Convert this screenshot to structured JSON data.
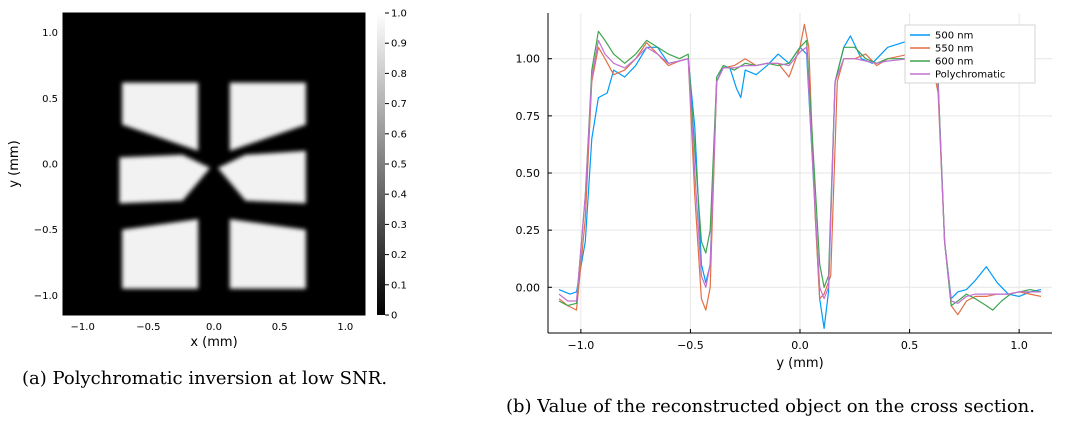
{
  "figure": {
    "caption_a": "(a) Polychromatic inversion at low SNR.",
    "caption_b": "(b) Value of the reconstructed object on the cross section."
  },
  "chart_data": [
    {
      "type": "heatmap",
      "xlabel": "x (mm)",
      "ylabel": "y (mm)",
      "xlim": [
        -1.15,
        1.15
      ],
      "ylim": [
        -1.15,
        1.15
      ],
      "xticks": [
        -1.0,
        -0.5,
        0.0,
        0.5,
        1.0
      ],
      "xtick_labels": [
        "−1.0",
        "−0.5",
        "0.0",
        "0.5",
        "1.0"
      ],
      "yticks": [
        -1.0,
        -0.5,
        0.0,
        0.5,
        1.0
      ],
      "ytick_labels": [
        "−1.0",
        "−0.5",
        "0.0",
        "0.5",
        "1.0"
      ],
      "colormap": "grayscale",
      "colorbar": {
        "range": [
          0,
          1.0
        ],
        "ticks": [
          0,
          0.1,
          0.2,
          0.3,
          0.4,
          0.5,
          0.6,
          0.7,
          0.8,
          0.9,
          1.0
        ],
        "tick_labels": [
          "0",
          "0.1",
          "0.2",
          "0.3",
          "0.4",
          "0.5",
          "0.6",
          "0.7",
          "0.8",
          "0.9",
          "1.0"
        ]
      },
      "background_value": 0.0,
      "object_value": 0.95,
      "object_regions": [
        [
          [
            -0.7,
            0.62
          ],
          [
            -0.12,
            0.62
          ],
          [
            -0.12,
            0.1
          ],
          [
            -0.7,
            0.3
          ]
        ],
        [
          [
            0.12,
            0.62
          ],
          [
            0.7,
            0.62
          ],
          [
            0.7,
            0.3
          ],
          [
            0.12,
            0.1
          ]
        ],
        [
          [
            -0.72,
            0.05
          ],
          [
            -0.24,
            0.07
          ],
          [
            -0.03,
            -0.03
          ],
          [
            -0.24,
            -0.28
          ],
          [
            -0.72,
            -0.3
          ]
        ],
        [
          [
            0.03,
            -0.03
          ],
          [
            0.24,
            0.07
          ],
          [
            0.7,
            0.1
          ],
          [
            0.7,
            -0.3
          ],
          [
            0.24,
            -0.28
          ]
        ],
        [
          [
            -0.7,
            -0.5
          ],
          [
            -0.12,
            -0.42
          ],
          [
            -0.12,
            -0.95
          ],
          [
            -0.7,
            -0.95
          ]
        ],
        [
          [
            0.12,
            -0.42
          ],
          [
            0.7,
            -0.5
          ],
          [
            0.7,
            -0.95
          ],
          [
            0.12,
            -0.95
          ]
        ]
      ]
    },
    {
      "type": "line",
      "xlabel": "y (mm)",
      "ylabel": "",
      "xlim": [
        -1.15,
        1.15
      ],
      "ylim": [
        -0.2,
        1.2
      ],
      "xticks": [
        -1.0,
        -0.5,
        0.0,
        0.5,
        1.0
      ],
      "xtick_labels": [
        "−1.0",
        "−0.5",
        "0.0",
        "0.5",
        "1.0"
      ],
      "yticks": [
        0.0,
        0.25,
        0.5,
        0.75,
        1.0
      ],
      "ytick_labels": [
        "0.00",
        "0.25",
        "0.50",
        "0.75",
        "1.00"
      ],
      "grid": true,
      "legend_position": "top-right",
      "series": [
        {
          "name": "500 nm",
          "color": "#009AFA",
          "points": [
            [
              -1.1,
              -0.01
            ],
            [
              -1.05,
              -0.03
            ],
            [
              -1.02,
              -0.02
            ],
            [
              -0.98,
              0.2
            ],
            [
              -0.95,
              0.65
            ],
            [
              -0.92,
              0.83
            ],
            [
              -0.88,
              0.85
            ],
            [
              -0.85,
              0.95
            ],
            [
              -0.8,
              0.92
            ],
            [
              -0.75,
              0.97
            ],
            [
              -0.7,
              1.05
            ],
            [
              -0.65,
              1.05
            ],
            [
              -0.6,
              0.98
            ],
            [
              -0.55,
              0.99
            ],
            [
              -0.51,
              1.0
            ],
            [
              -0.48,
              0.7
            ],
            [
              -0.45,
              0.1
            ],
            [
              -0.43,
              0.02
            ],
            [
              -0.41,
              0.1
            ],
            [
              -0.38,
              0.9
            ],
            [
              -0.35,
              0.97
            ],
            [
              -0.32,
              0.96
            ],
            [
              -0.29,
              0.87
            ],
            [
              -0.27,
              0.83
            ],
            [
              -0.25,
              0.95
            ],
            [
              -0.2,
              0.93
            ],
            [
              -0.15,
              0.97
            ],
            [
              -0.1,
              1.02
            ],
            [
              -0.05,
              0.98
            ],
            [
              0.0,
              1.05
            ],
            [
              0.03,
              1.02
            ],
            [
              0.06,
              0.5
            ],
            [
              0.09,
              -0.05
            ],
            [
              0.11,
              -0.18
            ],
            [
              0.13,
              -0.02
            ],
            [
              0.16,
              0.9
            ],
            [
              0.2,
              1.05
            ],
            [
              0.23,
              1.1
            ],
            [
              0.28,
              1.0
            ],
            [
              0.33,
              0.98
            ],
            [
              0.4,
              1.05
            ],
            [
              0.5,
              1.08
            ],
            [
              0.55,
              1.06
            ],
            [
              0.6,
              1.05
            ],
            [
              0.63,
              0.9
            ],
            [
              0.66,
              0.2
            ],
            [
              0.69,
              -0.05
            ],
            [
              0.72,
              -0.02
            ],
            [
              0.76,
              -0.01
            ],
            [
              0.8,
              0.03
            ],
            [
              0.85,
              0.09
            ],
            [
              0.9,
              0.02
            ],
            [
              0.95,
              -0.03
            ],
            [
              1.0,
              -0.04
            ],
            [
              1.05,
              -0.02
            ],
            [
              1.1,
              -0.01
            ]
          ]
        },
        {
          "name": "550 nm",
          "color": "#E26F46",
          "points": [
            [
              -1.1,
              -0.05
            ],
            [
              -1.06,
              -0.08
            ],
            [
              -1.02,
              -0.1
            ],
            [
              -0.98,
              0.3
            ],
            [
              -0.95,
              0.9
            ],
            [
              -0.92,
              1.05
            ],
            [
              -0.89,
              1.0
            ],
            [
              -0.85,
              0.93
            ],
            [
              -0.8,
              0.95
            ],
            [
              -0.75,
              1.0
            ],
            [
              -0.7,
              1.07
            ],
            [
              -0.65,
              1.02
            ],
            [
              -0.6,
              0.97
            ],
            [
              -0.55,
              0.99
            ],
            [
              -0.51,
              1.0
            ],
            [
              -0.48,
              0.4
            ],
            [
              -0.45,
              -0.05
            ],
            [
              -0.43,
              -0.1
            ],
            [
              -0.41,
              0.0
            ],
            [
              -0.38,
              0.9
            ],
            [
              -0.35,
              0.96
            ],
            [
              -0.3,
              0.97
            ],
            [
              -0.25,
              1.0
            ],
            [
              -0.2,
              0.97
            ],
            [
              -0.15,
              0.98
            ],
            [
              -0.1,
              0.98
            ],
            [
              -0.05,
              0.92
            ],
            [
              0.0,
              1.05
            ],
            [
              0.02,
              1.15
            ],
            [
              0.04,
              1.05
            ],
            [
              0.07,
              0.3
            ],
            [
              0.09,
              -0.05
            ],
            [
              0.11,
              -0.03
            ],
            [
              0.14,
              0.05
            ],
            [
              0.17,
              0.9
            ],
            [
              0.2,
              1.0
            ],
            [
              0.25,
              1.0
            ],
            [
              0.3,
              1.02
            ],
            [
              0.35,
              0.97
            ],
            [
              0.4,
              1.0
            ],
            [
              0.5,
              1.02
            ],
            [
              0.55,
              1.0
            ],
            [
              0.6,
              1.0
            ],
            [
              0.63,
              0.85
            ],
            [
              0.66,
              0.2
            ],
            [
              0.69,
              -0.08
            ],
            [
              0.72,
              -0.12
            ],
            [
              0.76,
              -0.06
            ],
            [
              0.8,
              -0.04
            ],
            [
              0.85,
              -0.04
            ],
            [
              0.9,
              -0.03
            ],
            [
              0.95,
              -0.03
            ],
            [
              1.0,
              -0.02
            ],
            [
              1.05,
              -0.03
            ],
            [
              1.1,
              -0.04
            ]
          ]
        },
        {
          "name": "600 nm",
          "color": "#3EA44E",
          "points": [
            [
              -1.1,
              -0.06
            ],
            [
              -1.06,
              -0.08
            ],
            [
              -1.02,
              -0.07
            ],
            [
              -0.98,
              0.4
            ],
            [
              -0.95,
              0.95
            ],
            [
              -0.92,
              1.12
            ],
            [
              -0.89,
              1.08
            ],
            [
              -0.85,
              1.02
            ],
            [
              -0.8,
              0.98
            ],
            [
              -0.75,
              1.02
            ],
            [
              -0.7,
              1.08
            ],
            [
              -0.65,
              1.05
            ],
            [
              -0.6,
              1.02
            ],
            [
              -0.55,
              1.0
            ],
            [
              -0.51,
              1.02
            ],
            [
              -0.48,
              0.6
            ],
            [
              -0.45,
              0.2
            ],
            [
              -0.43,
              0.15
            ],
            [
              -0.41,
              0.25
            ],
            [
              -0.38,
              0.92
            ],
            [
              -0.35,
              0.97
            ],
            [
              -0.3,
              0.95
            ],
            [
              -0.25,
              0.98
            ],
            [
              -0.2,
              0.97
            ],
            [
              -0.15,
              0.98
            ],
            [
              -0.1,
              0.97
            ],
            [
              -0.05,
              0.98
            ],
            [
              0.0,
              1.05
            ],
            [
              0.03,
              1.08
            ],
            [
              0.06,
              0.6
            ],
            [
              0.09,
              0.1
            ],
            [
              0.11,
              0.0
            ],
            [
              0.13,
              0.05
            ],
            [
              0.16,
              0.9
            ],
            [
              0.2,
              1.05
            ],
            [
              0.25,
              1.05
            ],
            [
              0.3,
              1.0
            ],
            [
              0.35,
              0.98
            ],
            [
              0.4,
              1.0
            ],
            [
              0.5,
              1.0
            ],
            [
              0.55,
              1.0
            ],
            [
              0.6,
              1.02
            ],
            [
              0.63,
              0.9
            ],
            [
              0.66,
              0.2
            ],
            [
              0.69,
              -0.08
            ],
            [
              0.72,
              -0.06
            ],
            [
              0.76,
              -0.03
            ],
            [
              0.8,
              -0.05
            ],
            [
              0.85,
              -0.08
            ],
            [
              0.88,
              -0.1
            ],
            [
              0.92,
              -0.06
            ],
            [
              0.96,
              -0.03
            ],
            [
              1.0,
              -0.02
            ],
            [
              1.05,
              -0.01
            ],
            [
              1.1,
              -0.02
            ]
          ]
        },
        {
          "name": "Polychromatic",
          "color": "#C271D2",
          "points": [
            [
              -1.1,
              -0.03
            ],
            [
              -1.06,
              -0.06
            ],
            [
              -1.02,
              -0.06
            ],
            [
              -0.98,
              0.4
            ],
            [
              -0.95,
              0.92
            ],
            [
              -0.92,
              1.08
            ],
            [
              -0.89,
              1.02
            ],
            [
              -0.85,
              0.98
            ],
            [
              -0.8,
              0.96
            ],
            [
              -0.75,
              1.0
            ],
            [
              -0.7,
              1.05
            ],
            [
              -0.65,
              1.02
            ],
            [
              -0.6,
              0.98
            ],
            [
              -0.55,
              0.99
            ],
            [
              -0.51,
              1.0
            ],
            [
              -0.48,
              0.5
            ],
            [
              -0.45,
              0.05
            ],
            [
              -0.43,
              0.0
            ],
            [
              -0.41,
              0.1
            ],
            [
              -0.38,
              0.9
            ],
            [
              -0.35,
              0.96
            ],
            [
              -0.3,
              0.96
            ],
            [
              -0.25,
              0.97
            ],
            [
              -0.2,
              0.97
            ],
            [
              -0.15,
              0.98
            ],
            [
              -0.1,
              0.98
            ],
            [
              -0.05,
              0.97
            ],
            [
              0.0,
              1.03
            ],
            [
              0.03,
              1.05
            ],
            [
              0.06,
              0.5
            ],
            [
              0.09,
              0.0
            ],
            [
              0.11,
              -0.05
            ],
            [
              0.13,
              0.0
            ],
            [
              0.16,
              0.9
            ],
            [
              0.2,
              1.0
            ],
            [
              0.25,
              1.0
            ],
            [
              0.3,
              0.99
            ],
            [
              0.35,
              0.98
            ],
            [
              0.4,
              0.99
            ],
            [
              0.5,
              1.0
            ],
            [
              0.55,
              1.0
            ],
            [
              0.6,
              1.0
            ],
            [
              0.63,
              0.88
            ],
            [
              0.66,
              0.2
            ],
            [
              0.69,
              -0.06
            ],
            [
              0.72,
              -0.07
            ],
            [
              0.76,
              -0.04
            ],
            [
              0.8,
              -0.03
            ],
            [
              0.85,
              -0.03
            ],
            [
              0.9,
              -0.03
            ],
            [
              0.95,
              -0.03
            ],
            [
              1.0,
              -0.02
            ],
            [
              1.05,
              -0.02
            ],
            [
              1.1,
              -0.02
            ]
          ]
        }
      ]
    }
  ]
}
